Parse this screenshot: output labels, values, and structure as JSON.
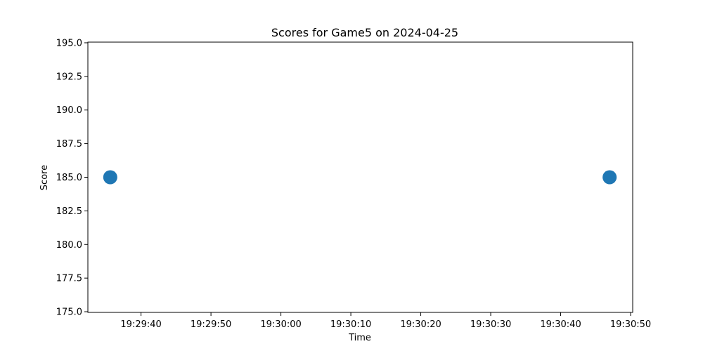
{
  "chart_data": {
    "type": "scatter",
    "title": "Scores for Game5 on 2024-04-25",
    "xlabel": "Time",
    "ylabel": "Score",
    "x": [
      "19:29:35.6",
      "19:30:47.0"
    ],
    "y": [
      185.0,
      185.0
    ],
    "xlim": [
      "19:29:32.4",
      "19:30:50.3"
    ],
    "ylim": [
      174.95,
      195.05
    ],
    "xticks": [
      "19:29:40",
      "19:29:50",
      "19:30:00",
      "19:30:10",
      "19:30:20",
      "19:30:30",
      "19:30:40",
      "19:30:50"
    ],
    "yticks": [
      "175.0",
      "177.5",
      "180.0",
      "182.5",
      "185.0",
      "187.5",
      "190.0",
      "192.5",
      "195.0"
    ],
    "marker_color": "#1f77b4",
    "grid": false
  }
}
